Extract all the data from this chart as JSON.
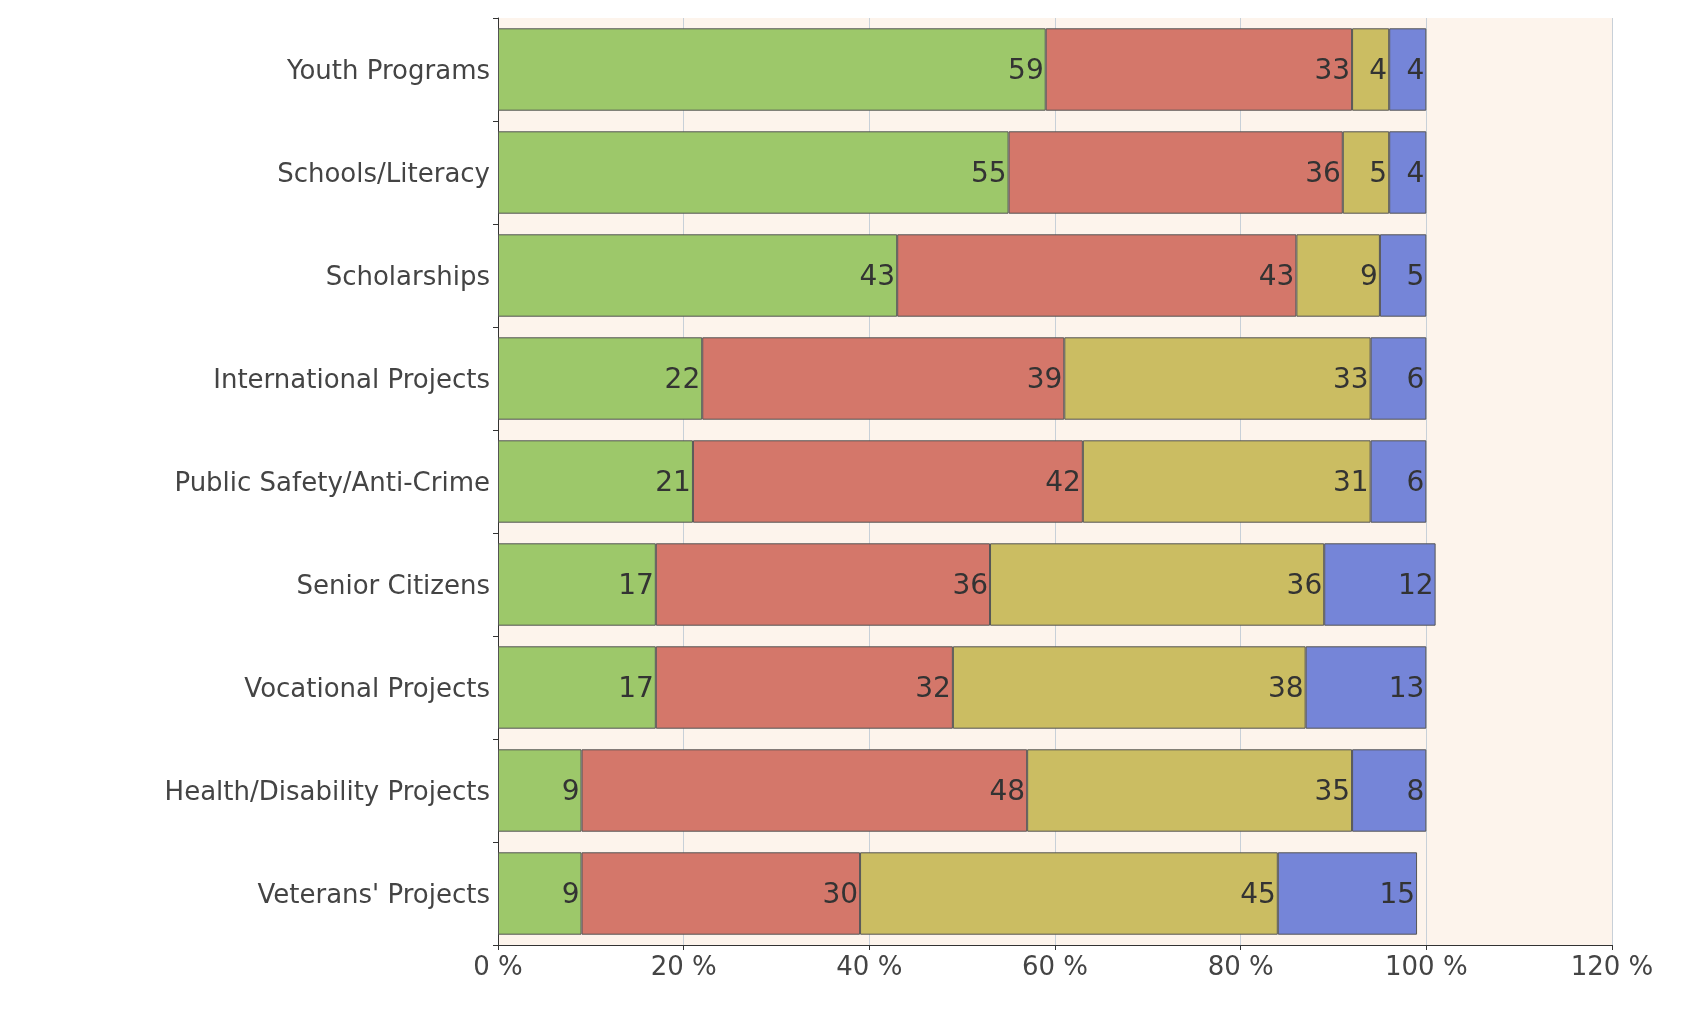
{
  "chart_data": {
    "type": "bar",
    "orientation": "horizontal",
    "stacked": true,
    "data_labels": true,
    "grid": "x",
    "legend": false,
    "categories": [
      "Youth Programs",
      "Schools/Literacy",
      "Scholarships",
      "International Projects",
      "Public Safety/Anti-Crime",
      "Senior Citizens",
      "Vocational Projects",
      "Health/Disability Projects",
      "Veterans' Projects"
    ],
    "series": [
      {
        "color": "#9dc86a",
        "values": [
          59,
          55,
          43,
          22,
          21,
          17,
          17,
          9,
          9
        ]
      },
      {
        "color": "#d4776a",
        "values": [
          33,
          36,
          43,
          39,
          42,
          36,
          32,
          48,
          30
        ]
      },
      {
        "color": "#cbbd62",
        "values": [
          4,
          5,
          9,
          33,
          31,
          36,
          38,
          35,
          45
        ]
      },
      {
        "color": "#7585d8",
        "values": [
          4,
          4,
          5,
          6,
          6,
          12,
          13,
          8,
          15
        ]
      }
    ],
    "xlim": [
      0,
      120
    ],
    "xticks": [
      {
        "value": 0,
        "label": "0 %"
      },
      {
        "value": 20,
        "label": "20 %"
      },
      {
        "value": 40,
        "label": "40 %"
      },
      {
        "value": 60,
        "label": "60 %"
      },
      {
        "value": 80,
        "label": "80 %"
      },
      {
        "value": 100,
        "label": "100 %"
      },
      {
        "value": 120,
        "label": "120 %"
      }
    ]
  }
}
